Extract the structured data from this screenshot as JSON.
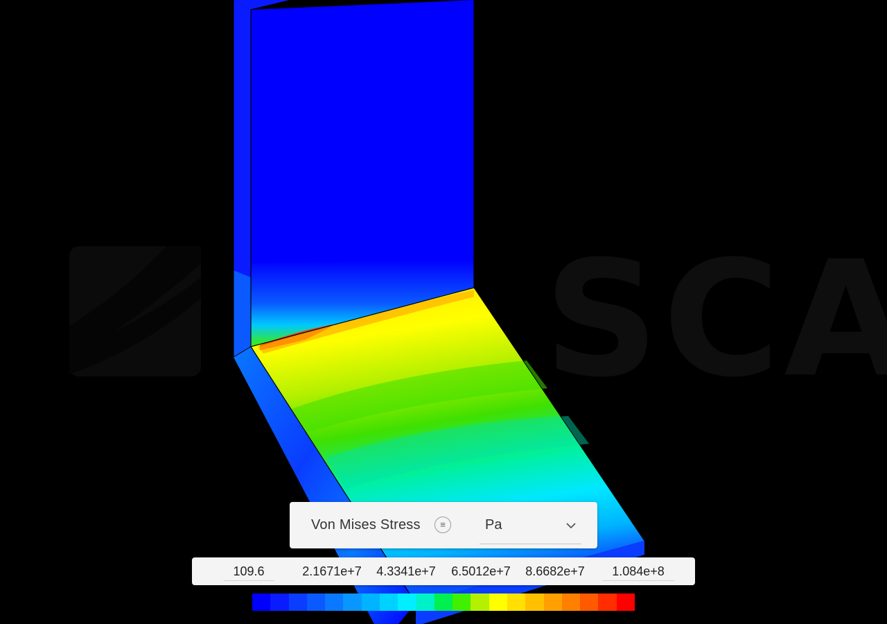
{
  "result_panel": {
    "field_label": "Von Mises Stress",
    "unit": "Pa",
    "info_icon": "list-icon",
    "dropdown_icon": "chevron-down-icon"
  },
  "legend": {
    "tick_labels": [
      "109.6",
      "2.1671e+7",
      "4.3341e+7",
      "6.5012e+7",
      "8.6682e+7",
      "1.084e+8"
    ],
    "min": 109.6,
    "max": 108400000,
    "colors": [
      "#0000ff",
      "#0a1cff",
      "#0a3dff",
      "#0a5aff",
      "#0a78ff",
      "#0a96ff",
      "#00b4ff",
      "#00d2ff",
      "#00eeff",
      "#00f0c8",
      "#00f050",
      "#40f000",
      "#b4f000",
      "#ffff00",
      "#ffe000",
      "#ffc000",
      "#ffa000",
      "#ff8000",
      "#ff5a00",
      "#ff2d00",
      "#ff0000"
    ]
  },
  "viewport": {
    "watermark_text": "SCALE",
    "watermark_color": "#111111",
    "model_base_color": "#0000ff"
  }
}
